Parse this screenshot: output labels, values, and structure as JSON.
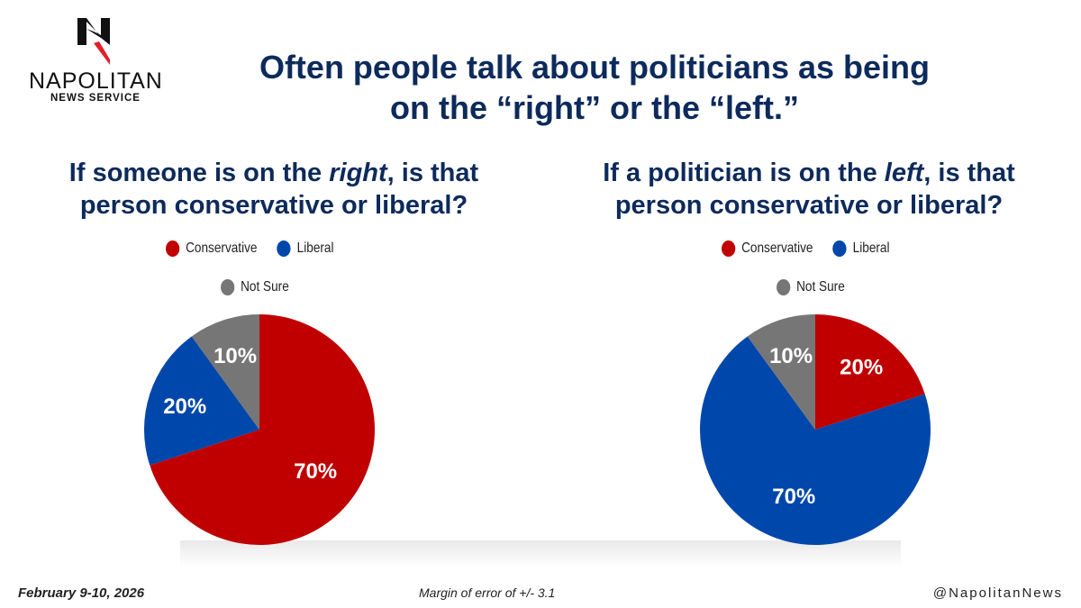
{
  "logo": {
    "name": "NAPOLITAN",
    "sub": "NEWS SERVICE"
  },
  "title_line1": "Often people talk about politicians as being",
  "title_line2": "on the “right” or the “left.”",
  "colors": {
    "Conservative": "#c00000",
    "Liberal": "#0047ab",
    "Not Sure": "#767676"
  },
  "chart_data": [
    {
      "type": "pie",
      "title_pre": "If someone is on the ",
      "title_em": "right",
      "title_post": ", is that",
      "title_line2": "person conservative or liberal?",
      "legend": [
        "Conservative",
        "Liberal",
        "Not Sure"
      ],
      "slices": [
        {
          "label": "Conservative",
          "value": 70,
          "text": "70%"
        },
        {
          "label": "Liberal",
          "value": 20,
          "text": "20%"
        },
        {
          "label": "Not Sure",
          "value": 10,
          "text": "10%"
        }
      ]
    },
    {
      "type": "pie",
      "title_pre": "If a politician is on the ",
      "title_em": "left",
      "title_post": ", is that",
      "title_line2": "person conservative or liberal?",
      "legend": [
        "Conservative",
        "Liberal",
        "Not Sure"
      ],
      "slices": [
        {
          "label": "Conservative",
          "value": 20,
          "text": "20%"
        },
        {
          "label": "Liberal",
          "value": 70,
          "text": "70%"
        },
        {
          "label": "Not Sure",
          "value": 10,
          "text": "10%"
        }
      ]
    }
  ],
  "footer": {
    "date": "February 9-10, 2026",
    "margin": "Margin of error of +/- 3.1",
    "handle": "@NapolitanNews"
  }
}
